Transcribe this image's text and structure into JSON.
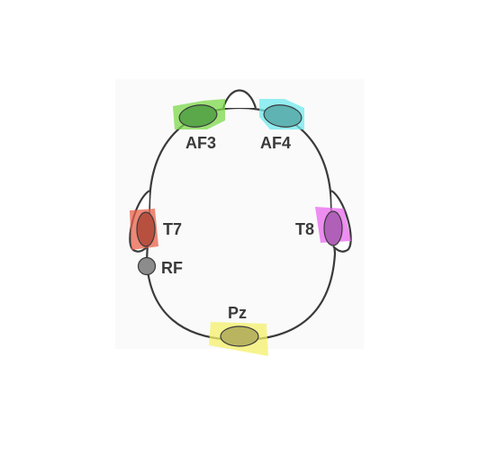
{
  "diagram": {
    "electrodes": [
      {
        "id": "af3",
        "label": "AF3",
        "color": "#7cd84a",
        "dot": "#5aa84a"
      },
      {
        "id": "af4",
        "label": "AF4",
        "color": "#6fe9ee",
        "dot": "#5fb3b3"
      },
      {
        "id": "t7",
        "label": "T7",
        "color": "#e8604a",
        "dot": "#b85040"
      },
      {
        "id": "t8",
        "label": "T8",
        "color": "#e868ee",
        "dot": "#b060b8"
      },
      {
        "id": "pz",
        "label": "Pz",
        "color": "#f4f06a",
        "dot": "#b8b460"
      },
      {
        "id": "rf",
        "label": "RF",
        "color": "#8c8c8c",
        "dot": "#8c8c8c"
      }
    ],
    "outline_color": "#3a3a3a"
  }
}
